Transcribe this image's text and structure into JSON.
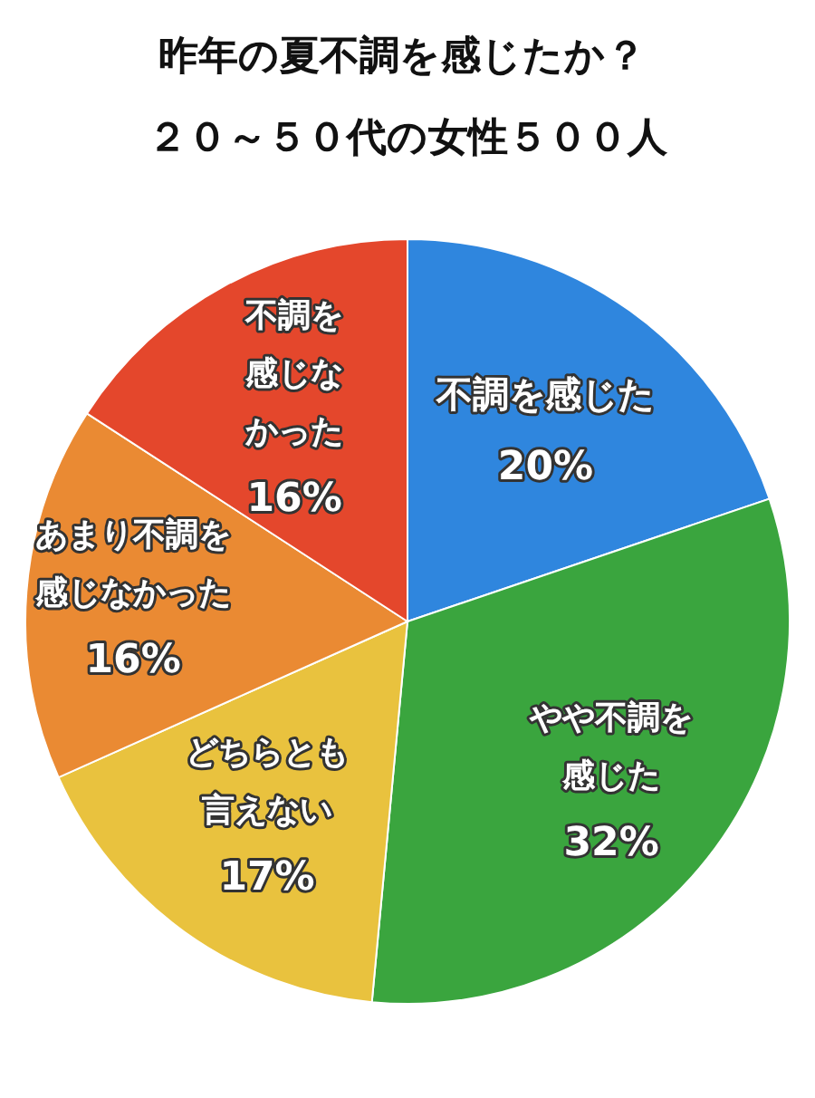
{
  "chart_data": {
    "type": "pie",
    "title": "昨年の夏不調を感じたか？",
    "subtitle": "２０～５０代の女性５００人",
    "categories": [
      "不調を感じた",
      "やや不調を感じた",
      "どちらとも言えない",
      "あまり不調を感じなかった",
      "不調を感じなかった"
    ],
    "values": [
      20,
      32,
      17,
      16,
      16
    ],
    "value_labels": [
      "20%",
      "32%",
      "17%",
      "16%",
      "16%"
    ],
    "colors": [
      "#2f86de",
      "#3aa53e",
      "#e9c23e",
      "#ea8a33",
      "#e4472c"
    ]
  }
}
